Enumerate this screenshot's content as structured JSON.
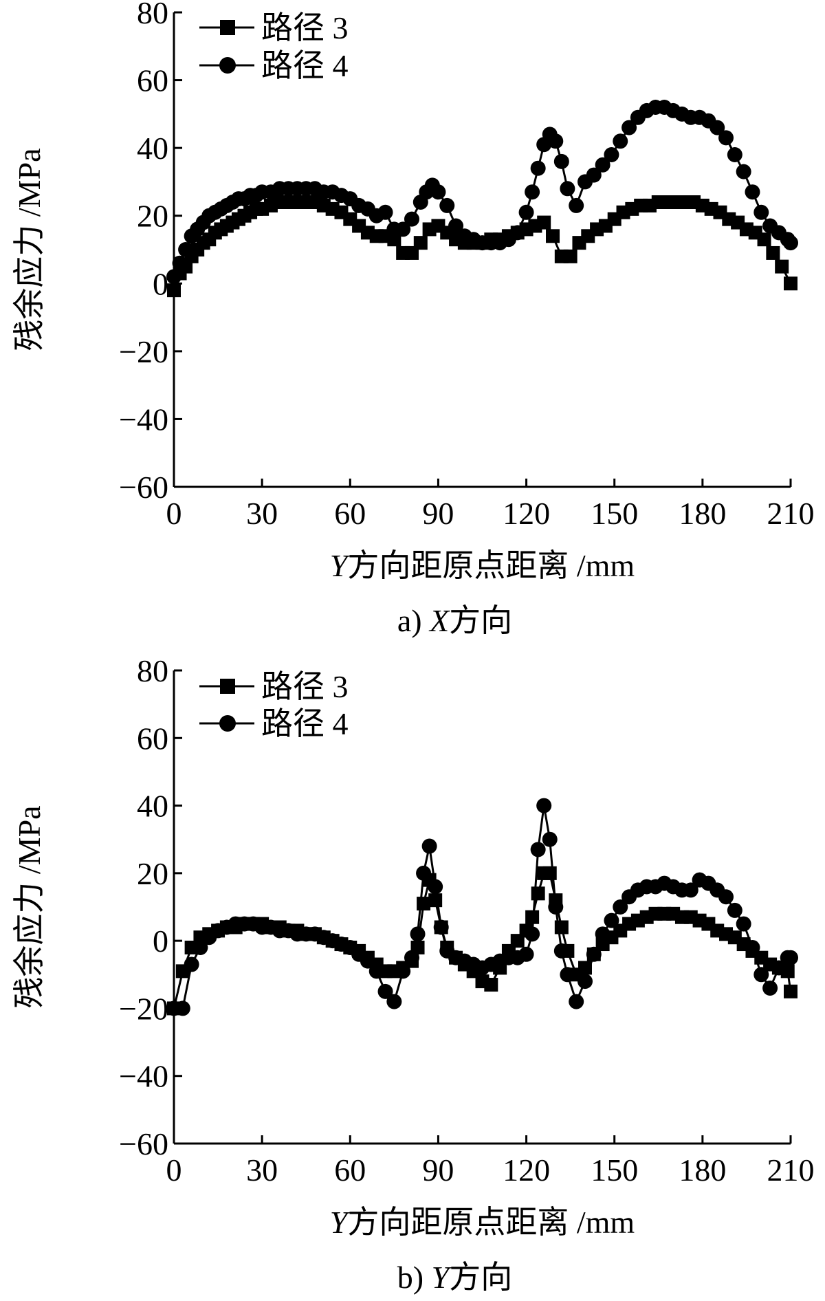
{
  "figure": {
    "panels": [
      {
        "caption_prefix": "a)",
        "caption_axis": "X",
        "caption_suffix": "方向",
        "ylabel": "残余应力 /MPa",
        "xlabel_var": "Y",
        "xlabel_rest": "方向距原点距离 /mm",
        "legend": [
          "路径 3",
          "路径 4"
        ]
      },
      {
        "caption_prefix": "b)",
        "caption_axis": "Y",
        "caption_suffix": "方向",
        "ylabel": "残余应力 /MPa",
        "xlabel_var": "Y",
        "xlabel_rest": "方向距原点距离 /mm",
        "legend": [
          "路径 3",
          "路径 4"
        ]
      }
    ]
  },
  "chart_data": [
    {
      "type": "line",
      "title": "a) X方向",
      "xlabel": "Y方向距原点距离 /mm",
      "ylabel": "残余应力 /MPa",
      "xlim": [
        0,
        210
      ],
      "ylim": [
        -60,
        80
      ],
      "xticks": [
        0,
        30,
        60,
        90,
        120,
        150,
        180,
        210
      ],
      "yticks": [
        -60,
        -40,
        -20,
        0,
        20,
        40,
        60,
        80
      ],
      "legend_position": "top-left",
      "series": [
        {
          "name": "路径 3",
          "marker": "square",
          "x": [
            0,
            2,
            4,
            6,
            8,
            10,
            12,
            14,
            16,
            18,
            20,
            22,
            24,
            26,
            28,
            30,
            33,
            36,
            39,
            42,
            45,
            48,
            51,
            54,
            57,
            60,
            63,
            66,
            69,
            72,
            75,
            78,
            81,
            84,
            87,
            90,
            93,
            96,
            99,
            102,
            105,
            108,
            111,
            114,
            117,
            120,
            123,
            126,
            129,
            132,
            135,
            138,
            141,
            144,
            147,
            150,
            153,
            156,
            159,
            162,
            165,
            168,
            171,
            174,
            177,
            180,
            183,
            186,
            189,
            192,
            195,
            198,
            201,
            204,
            207,
            210
          ],
          "y": [
            -2,
            3,
            5,
            8,
            10,
            12,
            13,
            15,
            16,
            17,
            18,
            19,
            20,
            21,
            22,
            22,
            23,
            24,
            24,
            24,
            24,
            24,
            23,
            22,
            21,
            19,
            17,
            15,
            14,
            14,
            13,
            9,
            9,
            12,
            16,
            17,
            15,
            13,
            12,
            12,
            12,
            13,
            13,
            14,
            15,
            16,
            17,
            18,
            14,
            8,
            8,
            12,
            14,
            16,
            17,
            19,
            21,
            22,
            23,
            23,
            24,
            24,
            24,
            24,
            24,
            23,
            22,
            21,
            19,
            18,
            16,
            15,
            13,
            9,
            5,
            0
          ]
        },
        {
          "name": "路径 4",
          "marker": "circle",
          "x": [
            0,
            2,
            4,
            6,
            8,
            10,
            12,
            14,
            16,
            18,
            20,
            22,
            24,
            26,
            28,
            30,
            33,
            36,
            39,
            42,
            45,
            48,
            51,
            54,
            57,
            60,
            63,
            66,
            69,
            72,
            75,
            78,
            81,
            84,
            86,
            88,
            90,
            93,
            96,
            99,
            102,
            105,
            108,
            111,
            114,
            117,
            120,
            122,
            124,
            126,
            128,
            130,
            132,
            134,
            137,
            140,
            143,
            146,
            149,
            152,
            155,
            158,
            161,
            164,
            167,
            170,
            173,
            176,
            179,
            182,
            185,
            188,
            191,
            194,
            197,
            200,
            203,
            206,
            209,
            210
          ],
          "y": [
            2,
            6,
            10,
            14,
            16,
            18,
            20,
            21,
            22,
            23,
            24,
            25,
            25,
            26,
            26,
            27,
            27,
            28,
            28,
            28,
            28,
            28,
            27,
            27,
            26,
            25,
            23,
            22,
            20,
            21,
            16,
            16,
            19,
            24,
            27,
            29,
            27,
            23,
            17,
            14,
            13,
            12,
            12,
            12,
            13,
            15,
            21,
            27,
            34,
            41,
            44,
            42,
            36,
            28,
            23,
            30,
            32,
            35,
            38,
            42,
            46,
            49,
            51,
            52,
            52,
            51,
            50,
            49,
            49,
            48,
            46,
            43,
            38,
            33,
            27,
            21,
            17,
            15,
            13,
            12
          ]
        }
      ]
    },
    {
      "type": "line",
      "title": "b) Y方向",
      "xlabel": "Y方向距原点距离 /mm",
      "ylabel": "残余应力 /MPa",
      "xlim": [
        0,
        210
      ],
      "ylim": [
        -60,
        80
      ],
      "xticks": [
        0,
        30,
        60,
        90,
        120,
        150,
        180,
        210
      ],
      "yticks": [
        -60,
        -40,
        -20,
        0,
        20,
        40,
        60,
        80
      ],
      "legend_position": "top-left",
      "series": [
        {
          "name": "路径 3",
          "marker": "square",
          "x": [
            0,
            3,
            6,
            9,
            12,
            15,
            18,
            21,
            24,
            27,
            30,
            33,
            36,
            39,
            42,
            45,
            48,
            51,
            54,
            57,
            60,
            63,
            66,
            69,
            72,
            75,
            78,
            81,
            83,
            85,
            87,
            89,
            91,
            93,
            96,
            99,
            102,
            105,
            108,
            111,
            114,
            117,
            120,
            122,
            124,
            126,
            128,
            130,
            132,
            134,
            137,
            140,
            143,
            146,
            149,
            152,
            155,
            158,
            161,
            164,
            167,
            170,
            173,
            176,
            179,
            182,
            185,
            188,
            191,
            194,
            197,
            200,
            203,
            206,
            209,
            210
          ],
          "y": [
            -20,
            -9,
            -2,
            1,
            2,
            3,
            4,
            4,
            5,
            5,
            5,
            4,
            4,
            3,
            3,
            2,
            2,
            1,
            0,
            -1,
            -2,
            -3,
            -5,
            -7,
            -9,
            -9,
            -8,
            -6,
            -2,
            11,
            18,
            12,
            4,
            -2,
            -5,
            -7,
            -9,
            -12,
            -13,
            -8,
            -3,
            0,
            3,
            7,
            14,
            20,
            20,
            12,
            4,
            -3,
            -10,
            -8,
            -4,
            -1,
            1,
            3,
            5,
            6,
            7,
            8,
            8,
            8,
            7,
            7,
            6,
            5,
            3,
            2,
            1,
            -1,
            -3,
            -5,
            -7,
            -8,
            -9,
            -15
          ]
        },
        {
          "name": "路径 4",
          "marker": "circle",
          "x": [
            0,
            3,
            6,
            9,
            12,
            15,
            18,
            21,
            24,
            27,
            30,
            33,
            36,
            39,
            42,
            45,
            48,
            51,
            54,
            57,
            60,
            63,
            66,
            69,
            72,
            75,
            78,
            81,
            83,
            85,
            87,
            89,
            91,
            93,
            96,
            99,
            102,
            105,
            108,
            111,
            114,
            117,
            120,
            122,
            124,
            126,
            128,
            130,
            132,
            134,
            137,
            140,
            143,
            146,
            149,
            152,
            155,
            158,
            161,
            164,
            167,
            170,
            173,
            176,
            179,
            182,
            185,
            188,
            191,
            194,
            197,
            200,
            203,
            206,
            209,
            210
          ],
          "y": [
            -20,
            -20,
            -7,
            -2,
            1,
            3,
            4,
            5,
            5,
            5,
            4,
            4,
            3,
            3,
            2,
            2,
            2,
            1,
            0,
            -1,
            -2,
            -4,
            -6,
            -9,
            -15,
            -18,
            -9,
            -5,
            2,
            20,
            28,
            16,
            4,
            -3,
            -5,
            -6,
            -7,
            -8,
            -7,
            -6,
            -5,
            -5,
            -4,
            2,
            27,
            40,
            30,
            10,
            -3,
            -10,
            -18,
            -12,
            -4,
            2,
            6,
            10,
            13,
            15,
            16,
            16,
            17,
            16,
            15,
            15,
            18,
            17,
            15,
            13,
            9,
            5,
            -2,
            -10,
            -14,
            -8,
            -5,
            -5
          ]
        }
      ]
    }
  ]
}
